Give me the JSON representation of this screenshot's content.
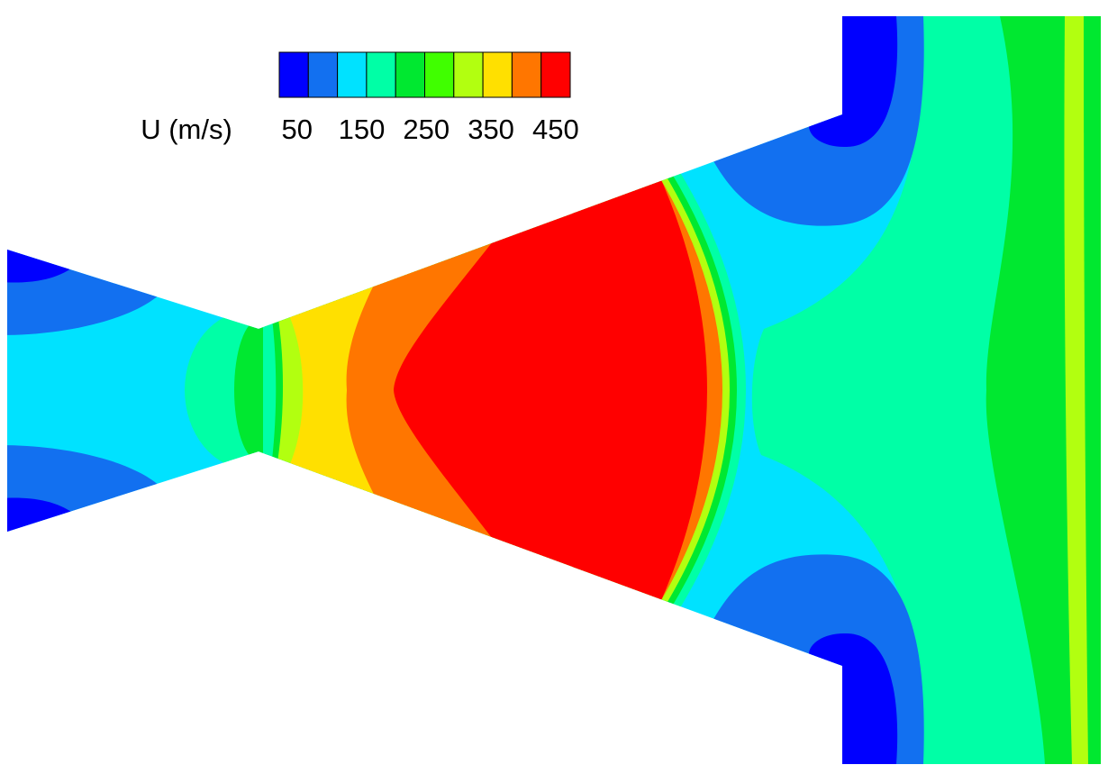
{
  "chart_data": {
    "type": "contour",
    "colorbar": {
      "label": "U (m/s)",
      "levels": [
        22.5,
        67.5,
        112.5,
        157.5,
        202.5,
        247.5,
        292.5,
        337.5,
        382.5,
        427.5,
        472.5
      ],
      "colors": [
        "#0000ff",
        "#1270f0",
        "#00e2ff",
        "#00ffa6",
        "#00e830",
        "#40ff00",
        "#b2ff10",
        "#ffe000",
        "#ff7600",
        "#ff0000"
      ],
      "ticks": [
        50,
        150,
        250,
        350,
        450
      ]
    }
  }
}
